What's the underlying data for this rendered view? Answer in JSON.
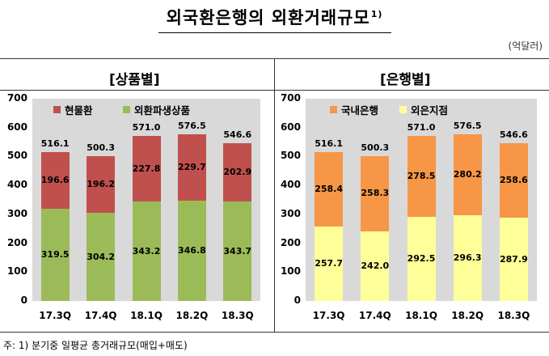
{
  "title": "외국환은행의 외환거래규모",
  "title_note": "1)",
  "unit": "(억달러)",
  "footnote": "주: 1) 분기중 일평균 총거래규모(매입+매도)",
  "chart_data": [
    {
      "type": "bar",
      "stacked": true,
      "title": "[상품별]",
      "categories": [
        "17.3Q",
        "17.4Q",
        "18.1Q",
        "18.2Q",
        "18.3Q"
      ],
      "series": [
        {
          "name": "외환파생상품",
          "color": "#9bbb59",
          "values": [
            319.5,
            304.2,
            343.2,
            346.8,
            343.7
          ]
        },
        {
          "name": "현물환",
          "color": "#c0504d",
          "values": [
            196.6,
            196.2,
            227.8,
            229.7,
            202.9
          ]
        }
      ],
      "totals": [
        516.1,
        500.3,
        571.0,
        576.5,
        546.6
      ],
      "ylim": [
        0,
        700
      ],
      "yticks": [
        "0",
        "100",
        "200",
        "300",
        "400",
        "500",
        "600",
        "700"
      ],
      "legend": [
        "현물환",
        "외환파생상품"
      ],
      "grid": false
    },
    {
      "type": "bar",
      "stacked": true,
      "title": "[은행별]",
      "categories": [
        "17.3Q",
        "17.4Q",
        "18.1Q",
        "18.2Q",
        "18.3Q"
      ],
      "series": [
        {
          "name": "외은지점",
          "color": "#ffff99",
          "values": [
            257.7,
            242.0,
            292.5,
            296.3,
            287.9
          ]
        },
        {
          "name": "국내은행",
          "color": "#f79646",
          "values": [
            258.4,
            258.3,
            278.5,
            280.2,
            258.6
          ]
        }
      ],
      "totals": [
        516.1,
        500.3,
        571.0,
        576.5,
        546.6
      ],
      "ylim": [
        0,
        700
      ],
      "yticks": [
        "0",
        "100",
        "200",
        "300",
        "400",
        "500",
        "600",
        "700"
      ],
      "legend": [
        "국내은행",
        "외은지점"
      ],
      "grid": false
    }
  ]
}
